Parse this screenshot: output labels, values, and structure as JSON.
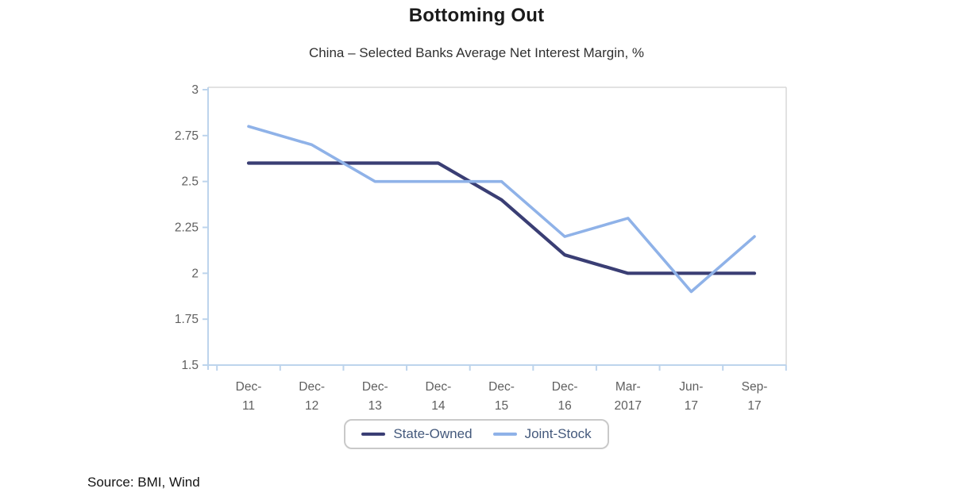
{
  "title": "Bottoming Out",
  "subtitle": "China – Selected Banks Average Net Interest Margin, %",
  "source": "Source: BMI, Wind",
  "colors": {
    "state_owned": "#3a3e74",
    "joint_stock": "#8fb2e8",
    "axis_line": "#bdd4ec",
    "plot_border": "#d8d8d8",
    "tick_label": "#5f5f5f",
    "legend_text": "#44597c"
  },
  "chart_data": {
    "type": "line",
    "title": "Bottoming Out",
    "subtitle": "China – Selected Banks Average Net Interest Margin, %",
    "categories": [
      "Dec-11",
      "Dec-12",
      "Dec-13",
      "Dec-14",
      "Dec-15",
      "Dec-16",
      "Mar-2017",
      "Jun-17",
      "Sep-17"
    ],
    "x_tick_labels_line1": [
      "Dec-",
      "Dec-",
      "Dec-",
      "Dec-",
      "Dec-",
      "Dec-",
      "Mar-",
      "Jun-",
      "Sep-"
    ],
    "x_tick_labels_line2": [
      "11",
      "12",
      "13",
      "14",
      "15",
      "16",
      "2017",
      "17",
      "17"
    ],
    "series": [
      {
        "name": "State-Owned",
        "color": "#3a3e74",
        "values": [
          2.6,
          2.6,
          2.6,
          2.6,
          2.4,
          2.1,
          2.0,
          2.0,
          2.0
        ]
      },
      {
        "name": "Joint-Stock",
        "color": "#8fb2e8",
        "values": [
          2.8,
          2.7,
          2.5,
          2.5,
          2.5,
          2.2,
          2.3,
          1.9,
          2.2
        ]
      }
    ],
    "ylim": [
      1.5,
      3
    ],
    "y_ticks": [
      3,
      2.75,
      2.5,
      2.25,
      2,
      1.75,
      1.5
    ],
    "y_tick_labels": [
      "3",
      "2.75",
      "2.5",
      "2.25",
      "2",
      "1.75",
      "1.5"
    ],
    "grid": false,
    "legend_position": "bottom"
  },
  "legend": {
    "items": [
      {
        "label": "State-Owned",
        "color": "#3a3e74"
      },
      {
        "label": "Joint-Stock",
        "color": "#8fb2e8"
      }
    ]
  }
}
